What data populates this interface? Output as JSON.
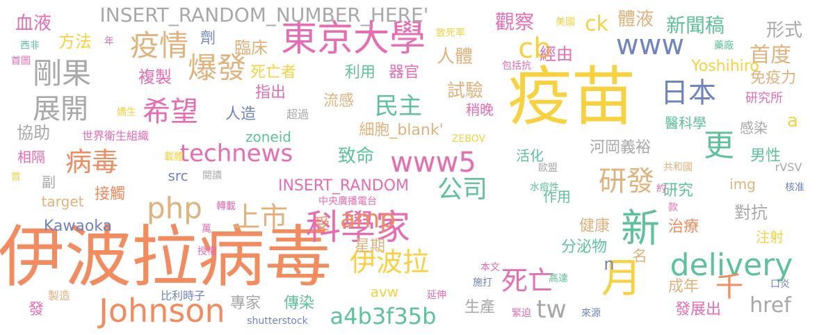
{
  "palette": {
    "orange": "#f28b5e",
    "yellow": "#f7d23e",
    "green": "#5dc29a",
    "pink": "#e86cb0",
    "blue": "#6f84c0",
    "tan": "#e0b27c",
    "grey": "#a8a8a8",
    "lime": "#b9d64a"
  },
  "words": [
    {
      "text": "疫苗",
      "color": "yellow"
    },
    {
      "text": "伊波拉病毒",
      "color": "orange"
    },
    {
      "text": "東京大學",
      "color": "pink"
    },
    {
      "text": "科學家",
      "color": "pink"
    },
    {
      "text": "Johnson",
      "color": "orange"
    },
    {
      "text": "technews",
      "color": "pink"
    },
    {
      "text": "www5",
      "color": "pink"
    },
    {
      "text": "delivery",
      "color": "green"
    },
    {
      "text": "a4b3f35b",
      "color": "green"
    },
    {
      "text": "月",
      "color": "yellow"
    },
    {
      "text": "新",
      "color": "green"
    },
    {
      "text": "INSERT_RANDOM_NUMBER_HERE'",
      "color": "grey"
    },
    {
      "text": "疫情",
      "color": "tan"
    },
    {
      "text": "爆發",
      "color": "tan"
    },
    {
      "text": "剛果",
      "color": "grey"
    },
    {
      "text": "展開",
      "color": "grey"
    },
    {
      "text": "希望",
      "color": "pink"
    },
    {
      "text": "病毒",
      "color": "orange"
    },
    {
      "text": "php",
      "color": "tan"
    },
    {
      "text": "上市",
      "color": "tan"
    },
    {
      "text": "amp",
      "color": "orange"
    },
    {
      "text": "公司",
      "color": "green"
    },
    {
      "text": "民主",
      "color": "green"
    },
    {
      "text": "日本",
      "color": "blue"
    },
    {
      "text": "www",
      "color": "blue"
    },
    {
      "text": "cb",
      "color": "yellow"
    },
    {
      "text": "ck",
      "color": "yellow"
    },
    {
      "text": "更",
      "color": "green"
    },
    {
      "text": "研發",
      "color": "tan"
    },
    {
      "text": "伊波拉",
      "color": "yellow"
    },
    {
      "text": "死亡",
      "color": "pink"
    },
    {
      "text": "tw",
      "color": "grey"
    },
    {
      "text": "千",
      "color": "orange"
    },
    {
      "text": "href",
      "color": "grey"
    },
    {
      "text": "首度",
      "color": "tan"
    },
    {
      "text": "新聞稿",
      "color": "green"
    },
    {
      "text": "體液",
      "color": "tan"
    },
    {
      "text": "觀察",
      "color": "pink"
    },
    {
      "text": "人體",
      "color": "tan"
    },
    {
      "text": "Yoshihiro",
      "color": "yellow"
    },
    {
      "text": "形式",
      "color": "grey"
    },
    {
      "text": "血液",
      "color": "pink"
    },
    {
      "text": "方法",
      "color": "yellow"
    },
    {
      "text": "劑",
      "color": "blue"
    },
    {
      "text": "臨床",
      "color": "tan"
    },
    {
      "text": "複製",
      "color": "pink"
    },
    {
      "text": "死亡者",
      "color": "yellow"
    },
    {
      "text": "利用",
      "color": "green"
    },
    {
      "text": "器官",
      "color": "pink"
    },
    {
      "text": "指出",
      "color": "pink"
    },
    {
      "text": "流感",
      "color": "tan"
    },
    {
      "text": "試驗",
      "color": "tan"
    },
    {
      "text": "經由",
      "color": "pink"
    },
    {
      "text": "致死率",
      "color": "yellow"
    },
    {
      "text": "美國",
      "color": "yellow"
    },
    {
      "text": "包括抗",
      "color": "pink"
    },
    {
      "text": "藥廠",
      "color": "green"
    },
    {
      "text": "免疫力",
      "color": "tan"
    },
    {
      "text": "研究所",
      "color": "pink"
    },
    {
      "text": "醫科學",
      "color": "green"
    },
    {
      "text": "感染",
      "color": "grey"
    },
    {
      "text": "a",
      "color": "yellow"
    },
    {
      "text": "協助",
      "color": "grey"
    },
    {
      "text": "世界衛生組織",
      "color": "pink"
    },
    {
      "text": "人造",
      "color": "blue"
    },
    {
      "text": "超過",
      "color": "grey"
    },
    {
      "text": "細胞_blank'",
      "color": "tan"
    },
    {
      "text": "稍晚",
      "color": "pink"
    },
    {
      "text": "zoneid",
      "color": "green"
    },
    {
      "text": "致命",
      "color": "green"
    },
    {
      "text": "ZEBOV",
      "color": "yellow"
    },
    {
      "text": "活化",
      "color": "green"
    },
    {
      "text": "河岡義裕",
      "color": "grey"
    },
    {
      "text": "歐盟",
      "color": "grey"
    },
    {
      "text": "男性",
      "color": "green"
    },
    {
      "text": "相隔",
      "color": "pink"
    },
    {
      "text": "載體",
      "color": "yellow"
    },
    {
      "text": "src",
      "color": "blue"
    },
    {
      "text": "閱讀",
      "color": "grey"
    },
    {
      "text": "INSERT_RANDOM",
      "color": "pink"
    },
    {
      "text": "水痘性",
      "color": "green"
    },
    {
      "text": "共和國",
      "color": "tan"
    },
    {
      "text": "研究",
      "color": "green"
    },
    {
      "text": "img",
      "color": "tan"
    },
    {
      "text": "rVSV",
      "color": "grey"
    },
    {
      "text": "核准",
      "color": "blue"
    },
    {
      "text": "副",
      "color": "grey"
    },
    {
      "text": "接觸",
      "color": "orange"
    },
    {
      "text": "target",
      "color": "tan"
    },
    {
      "text": "中央廣播電台",
      "color": "pink"
    },
    {
      "text": "作用",
      "color": "green"
    },
    {
      "text": "約",
      "color": "pink"
    },
    {
      "text": "對抗",
      "color": "grey"
    },
    {
      "text": "轉載",
      "color": "pink"
    },
    {
      "text": "款",
      "color": "pink"
    },
    {
      "text": "受",
      "color": "orange"
    },
    {
      "text": "Kawaoka",
      "color": "blue"
    },
    {
      "text": "健康",
      "color": "tan"
    },
    {
      "text": "治療",
      "color": "orange"
    },
    {
      "text": "萬",
      "color": "pink"
    },
    {
      "text": "星期",
      "color": "tan"
    },
    {
      "text": "分泌物",
      "color": "green"
    },
    {
      "text": "注射",
      "color": "yellow"
    },
    {
      "text": "n",
      "color": "blue"
    },
    {
      "text": "名",
      "color": "tan"
    },
    {
      "text": "授權",
      "color": "pink"
    },
    {
      "text": "本文",
      "color": "pink"
    },
    {
      "text": "高達",
      "color": "green"
    },
    {
      "text": "成年",
      "color": "tan"
    },
    {
      "text": "口炎",
      "color": "blue"
    },
    {
      "text": "avw",
      "color": "yellow"
    },
    {
      "text": "施打",
      "color": "blue"
    },
    {
      "text": "延伸",
      "color": "pink"
    },
    {
      "text": "製造",
      "color": "tan"
    },
    {
      "text": "比利時子",
      "color": "blue"
    },
    {
      "text": "專家",
      "color": "grey"
    },
    {
      "text": "傳染",
      "color": "green"
    },
    {
      "text": "生產",
      "color": "grey"
    },
    {
      "text": "發展出",
      "color": "pink"
    },
    {
      "text": "發",
      "color": "pink"
    },
    {
      "text": "緊迫",
      "color": "pink"
    },
    {
      "text": "來源",
      "color": "blue"
    },
    {
      "text": "shutterstock",
      "color": "blue"
    },
    {
      "text": "西非",
      "color": "green"
    },
    {
      "text": "年",
      "color": "pink"
    },
    {
      "text": "首圖",
      "color": "pink"
    },
    {
      "text": "嬌生",
      "color": "yellow"
    },
    {
      "text": "首",
      "color": "yellow"
    }
  ]
}
